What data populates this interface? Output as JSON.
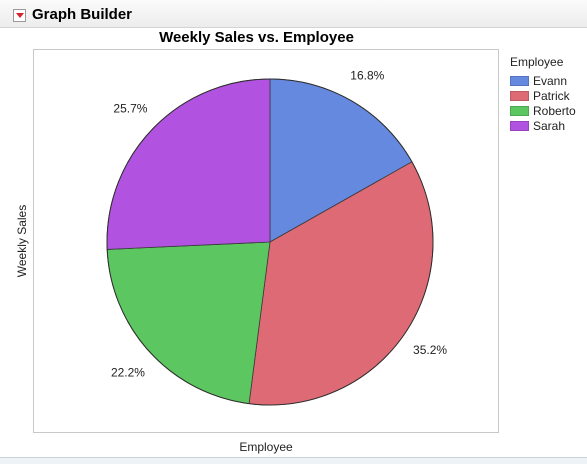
{
  "window": {
    "title": "Graph Builder"
  },
  "chart_data": {
    "type": "pie",
    "title": "Weekly Sales vs. Employee",
    "xlabel": "Employee",
    "ylabel": "Weekly Sales",
    "legend": {
      "title": "Employee",
      "placement": "right"
    },
    "categories": [
      "Evann",
      "Patrick",
      "Roberto",
      "Sarah"
    ],
    "values": [
      16.8,
      35.2,
      22.2,
      25.7
    ],
    "labels": [
      "16.8%",
      "35.2%",
      "22.2%",
      "25.7%"
    ],
    "colors": [
      "#6689e0",
      "#dd6a74",
      "#5cc660",
      "#b152e0"
    ]
  }
}
